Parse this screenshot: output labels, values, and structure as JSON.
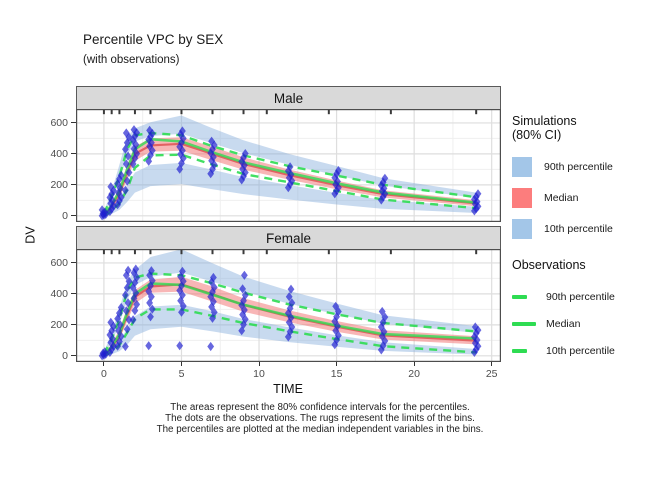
{
  "title": "Percentile VPC by SEX",
  "subtitle": "(with observations)",
  "x_axis": {
    "label": "TIME",
    "ticks": [
      0,
      5,
      10,
      15,
      20,
      25
    ]
  },
  "y_axis": {
    "label": "DV",
    "ticks": [
      0,
      200,
      400,
      600
    ]
  },
  "caption": {
    "line1": "The areas represent the 80% confidence intervals for the percentiles.",
    "line2": "The dots are the observations. The rugs represent the limits of the bins.",
    "line3": "The percentiles are plotted at the median independent variables in the bins."
  },
  "legend": {
    "simulations": {
      "title_line1": "Simulations",
      "title_line2": "(80% CI)",
      "items": [
        {
          "label": "90th percentile",
          "color": "#a3c6e8"
        },
        {
          "label": "Median",
          "color": "#fc7d7d"
        },
        {
          "label": "10th percentile",
          "color": "#a3c6e8"
        }
      ]
    },
    "observations": {
      "title": "Observations",
      "items": [
        {
          "label": "90th percentile",
          "style": "dashed"
        },
        {
          "label": "Median",
          "style": "solid"
        },
        {
          "label": "10th percentile",
          "style": "dashed"
        }
      ]
    }
  },
  "colors": {
    "ribbon_blue": "#7da7d8",
    "ribbon_blue_opacity": 0.42,
    "ribbon_red": "#f26d6d",
    "ribbon_red_opacity": 0.5,
    "obs_green": "#2edc52",
    "sim_median_red": "#e05e5e",
    "point_blue": "#1f1fd0",
    "grid_major": "#dedede",
    "grid_minor": "#efefef",
    "panel_border": "#4d4d4d",
    "rug": "#3a3a3a",
    "strip_bg": "#d9d9d9"
  },
  "chart_data": {
    "type": "line",
    "subtype": "vpc-percentile-with-ci-ribbons-and-observations",
    "x_domain": [
      -1.8,
      25.6
    ],
    "y_domain": [
      -40,
      690
    ],
    "grid": {
      "minor_x": [
        2.5,
        7.5,
        12.5,
        17.5,
        22.5
      ],
      "minor_y": [
        100,
        300,
        500
      ]
    },
    "bin_times": [
      0,
      0.5,
      1,
      1.5,
      2,
      3,
      5,
      7,
      9,
      12,
      15,
      18,
      24
    ],
    "rug_times": [
      0,
      0.5,
      1,
      2,
      3,
      5,
      7,
      9,
      10.5,
      14.5,
      18.5,
      24
    ],
    "facets": [
      {
        "label": "Male",
        "obs_median": [
          5,
          70,
          160,
          300,
          430,
          495,
          480,
          410,
          345,
          275,
          210,
          150,
          85
        ],
        "obs_p90": [
          15,
          125,
          255,
          430,
          520,
          535,
          520,
          450,
          390,
          320,
          260,
          200,
          120
        ],
        "obs_p10": [
          0,
          30,
          80,
          170,
          310,
          390,
          395,
          330,
          270,
          215,
          160,
          105,
          50
        ],
        "sim_median": [
          5,
          60,
          145,
          280,
          400,
          455,
          465,
          400,
          335,
          262,
          198,
          140,
          80
        ],
        "ci_median": {
          "lo": [
            0,
            45,
            115,
            240,
            355,
            415,
            420,
            358,
            298,
            232,
            172,
            118,
            62
          ],
          "hi": [
            12,
            85,
            185,
            330,
            450,
            500,
            508,
            445,
            378,
            298,
            228,
            165,
            100
          ]
        },
        "ci_p90": {
          "lo": [
            10,
            100,
            225,
            390,
            480,
            515,
            530,
            468,
            405,
            328,
            262,
            195,
            115
          ],
          "hi": [
            28,
            160,
            330,
            510,
            565,
            605,
            648,
            565,
            488,
            398,
            322,
            243,
            150
          ]
        },
        "ci_p10": {
          "lo": [
            -8,
            12,
            38,
            90,
            150,
            192,
            205,
            172,
            140,
            105,
            73,
            45,
            18
          ],
          "hi": [
            6,
            55,
            112,
            200,
            280,
            328,
            342,
            298,
            250,
            198,
            148,
            103,
            58
          ]
        },
        "points": [
          {
            "t": 0,
            "dv": [
              0,
              4,
              9,
              15,
              24,
              38
            ]
          },
          {
            "t": 0.5,
            "dv": [
              28,
              45,
              62,
              80,
              98,
              118,
              140,
              163,
              188
            ]
          },
          {
            "t": 1,
            "dv": [
              72,
              96,
              120,
              148,
              178,
              208,
              238,
              262
            ]
          },
          {
            "t": 1.5,
            "dv": [
              165,
              225,
              280,
              335,
              385,
              430,
              472,
              508,
              535
            ]
          },
          {
            "t": 2,
            "dv": [
              335,
              372,
              402,
              432,
              460,
              488,
              514,
              536,
              556
            ]
          },
          {
            "t": 3,
            "dv": [
              352,
              392,
              422,
              450,
              472,
              492,
              512,
              532,
              552
            ]
          },
          {
            "t": 5,
            "dv": [
              302,
              340,
              372,
              398,
              422,
              446,
              472,
              500,
              526,
              548
            ]
          },
          {
            "t": 7,
            "dv": [
              272,
              302,
              330,
              356,
              380,
              406,
              430,
              456,
              482
            ]
          },
          {
            "t": 9,
            "dv": [
              232,
              256,
              280,
              302,
              326,
              350,
              376,
              402
            ]
          },
          {
            "t": 12,
            "dv": [
              182,
              205,
              226,
              246,
              266,
              290,
              316
            ]
          },
          {
            "t": 15,
            "dv": [
              142,
              162,
              182,
              202,
              222,
              246,
              270,
              292
            ]
          },
          {
            "t": 18,
            "dv": [
              102,
              122,
              142,
              160,
              177,
              196,
              216,
              242
            ]
          },
          {
            "t": 24,
            "dv": [
              32,
              46,
              61,
              76,
              91,
              106,
              122,
              142
            ]
          }
        ]
      },
      {
        "label": "Female",
        "obs_median": [
          5,
          58,
          140,
          280,
          400,
          468,
          458,
          395,
          330,
          258,
          195,
          140,
          112
        ],
        "obs_p90": [
          12,
          108,
          235,
          420,
          505,
          532,
          520,
          468,
          408,
          330,
          268,
          212,
          158
        ],
        "obs_p10": [
          0,
          25,
          68,
          150,
          240,
          300,
          300,
          258,
          212,
          158,
          108,
          62,
          22
        ],
        "sim_median": [
          5,
          52,
          130,
          262,
          380,
          448,
          462,
          398,
          328,
          252,
          188,
          132,
          98
        ],
        "ci_median": {
          "lo": [
            0,
            40,
            105,
            225,
            338,
            408,
            415,
            350,
            285,
            215,
            155,
            105,
            74
          ],
          "hi": [
            11,
            78,
            168,
            310,
            425,
            492,
            510,
            448,
            372,
            292,
            225,
            166,
            126
          ]
        },
        "ci_p90": {
          "lo": [
            8,
            88,
            205,
            360,
            455,
            510,
            538,
            478,
            415,
            335,
            268,
            208,
            148
          ],
          "hi": [
            24,
            148,
            305,
            480,
            555,
            638,
            688,
            598,
            512,
            418,
            338,
            262,
            192
          ]
        },
        "ci_p10": {
          "lo": [
            -8,
            10,
            30,
            72,
            130,
            172,
            188,
            158,
            124,
            88,
            58,
            32,
            8
          ],
          "hi": [
            6,
            46,
            96,
            175,
            255,
            318,
            330,
            288,
            238,
            183,
            133,
            88,
            44
          ]
        },
        "points": [
          {
            "t": 0,
            "dv": [
              0,
              4,
              10,
              17,
              26
            ]
          },
          {
            "t": 0.5,
            "dv": [
              22,
              42,
              62,
              86,
              110,
              135,
              162,
              190,
              216
            ]
          },
          {
            "t": 1,
            "dv": [
              62,
              92,
              126,
              162,
              200,
              240,
              276,
              312
            ]
          },
          {
            "t": 1.5,
            "dv": [
              60,
              172,
              232,
              290,
              342,
              392,
              440,
              482,
              520,
              552
            ]
          },
          {
            "t": 2,
            "dv": [
              232,
              292,
              332,
              372,
              406,
              440,
              472,
              506,
              536,
              560
            ]
          },
          {
            "t": 3,
            "dv": [
              65,
              252,
              302,
              342,
              382,
              416,
              452,
              486,
              520,
              550
            ]
          },
          {
            "t": 5,
            "dv": [
              65,
              282,
              322,
              356,
              392,
              422,
              452,
              482,
              512,
              545
            ]
          },
          {
            "t": 7,
            "dv": [
              60,
              242,
              282,
              316,
              350,
              382,
              412,
              442,
              476,
              506
            ]
          },
          {
            "t": 9,
            "dv": [
              162,
              202,
              236,
              266,
              296,
              326,
              356,
              392,
              432,
              520
            ]
          },
          {
            "t": 12,
            "dv": [
              122,
              156,
              186,
              216,
              246,
              276,
              306,
              342,
              382,
              430
            ]
          },
          {
            "t": 15,
            "dv": [
              72,
              102,
              132,
              162,
              192,
              222,
              252,
              286,
              320
            ]
          },
          {
            "t": 18,
            "dv": [
              38,
              66,
              96,
              126,
              156,
              186,
              216,
              250,
              286
            ]
          },
          {
            "t": 24,
            "dv": [
              22,
              42,
              62,
              82,
              102,
              122,
              146,
              166,
              186
            ]
          }
        ]
      }
    ]
  }
}
